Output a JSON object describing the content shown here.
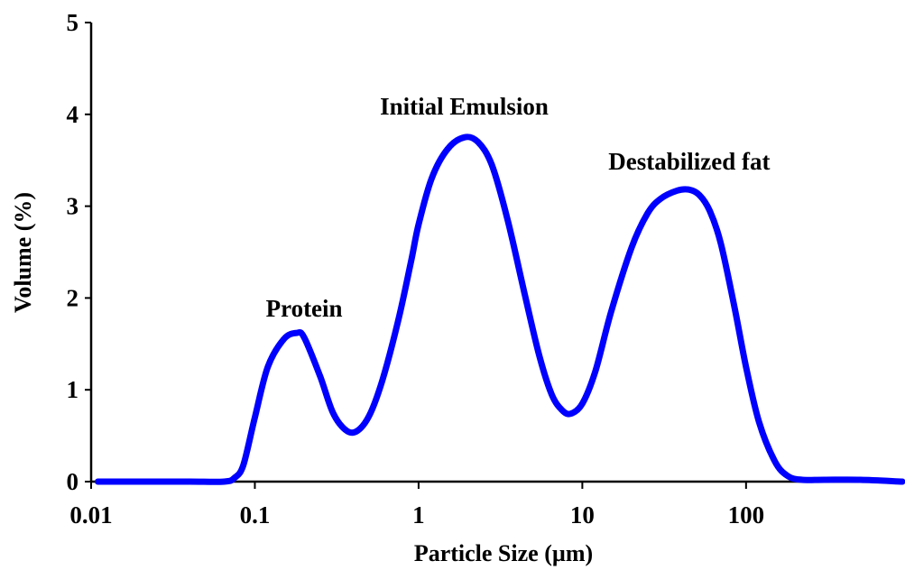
{
  "chart_data": {
    "type": "line",
    "xlabel": "Particle Size (µm)",
    "ylabel": "Volume (%)",
    "xscale": "log",
    "xlim": [
      0.01,
      900
    ],
    "ylim": [
      0,
      5
    ],
    "xticks": [
      0.01,
      0.1,
      1,
      10,
      100
    ],
    "xtick_labels": [
      "0.01",
      "0.1",
      "1",
      "10",
      "100"
    ],
    "yticks": [
      0,
      1,
      2,
      3,
      4,
      5
    ],
    "ytick_labels": [
      "0",
      "1",
      "2",
      "3",
      "4",
      "5"
    ],
    "grid": false,
    "series_color": "#0000ff",
    "series": [
      {
        "x": [
          0.011,
          0.02,
          0.04,
          0.065,
          0.075,
          0.085,
          0.1,
          0.12,
          0.15,
          0.18,
          0.2,
          0.25,
          0.3,
          0.36,
          0.42,
          0.5,
          0.6,
          0.75,
          0.9,
          1.0,
          1.2,
          1.5,
          1.9,
          2.3,
          2.8,
          3.5,
          4.5,
          5.5,
          6.5,
          7.5,
          8.5,
          10,
          12,
          15,
          20,
          25,
          30,
          38,
          45,
          52,
          60,
          70,
          85,
          100,
          120,
          150,
          180,
          220,
          300,
          500,
          900
        ],
        "y": [
          0.0,
          0.0,
          0.0,
          0.0,
          0.04,
          0.18,
          0.7,
          1.25,
          1.55,
          1.62,
          1.57,
          1.15,
          0.75,
          0.56,
          0.55,
          0.72,
          1.1,
          1.75,
          2.4,
          2.8,
          3.3,
          3.62,
          3.75,
          3.7,
          3.45,
          2.85,
          2.0,
          1.35,
          0.95,
          0.78,
          0.74,
          0.85,
          1.2,
          1.85,
          2.55,
          2.92,
          3.08,
          3.17,
          3.18,
          3.12,
          2.95,
          2.6,
          1.9,
          1.25,
          0.65,
          0.22,
          0.06,
          0.02,
          0.02,
          0.02,
          0.0
        ]
      }
    ],
    "annotations": [
      {
        "text": "Protein",
        "x": 0.2,
        "y": 1.8
      },
      {
        "text": "Initial Emulsion",
        "x": 1.9,
        "y": 4.0
      },
      {
        "text": "Destabilized fat",
        "x": 45,
        "y": 3.4
      }
    ]
  }
}
